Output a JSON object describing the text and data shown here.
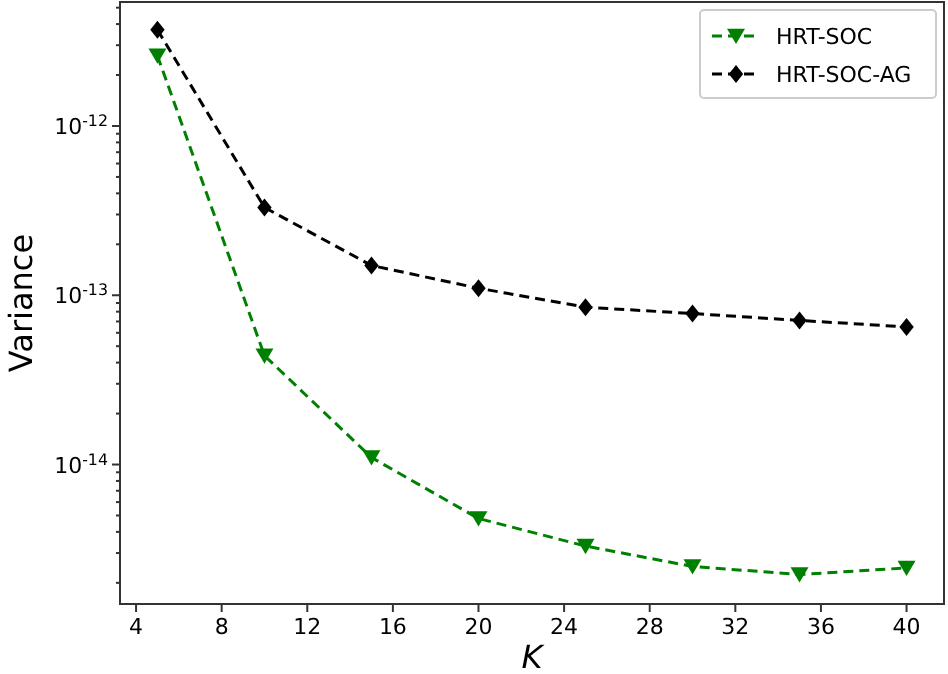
{
  "chart_data": {
    "type": "line",
    "xlabel": "K",
    "ylabel": "Variance",
    "x": [
      5,
      10,
      15,
      20,
      25,
      30,
      35,
      40
    ],
    "series": [
      {
        "name": "HRT-SOC",
        "color": "#008000",
        "marker": "triangle",
        "values": [
          2.6e-12,
          4.4e-14,
          1.1e-14,
          4.8e-15,
          3.3e-15,
          2.5e-15,
          2.24e-15,
          2.45e-15
        ]
      },
      {
        "name": "HRT-SOC-AG",
        "color": "#000000",
        "marker": "diamond",
        "values": [
          3.7e-12,
          3.3e-13,
          1.5e-13,
          1.1e-13,
          8.5e-14,
          7.8e-14,
          7.1e-14,
          6.5e-14
        ]
      }
    ],
    "xlim": [
      3.25,
      41.75
    ],
    "xticks": [
      4,
      8,
      12,
      16,
      20,
      24,
      28,
      32,
      36,
      40
    ],
    "ylim": [
      1.5e-15,
      5.4e-12
    ],
    "yticks": [
      {
        "value": 1e-12,
        "label": "10$^{-12}$"
      },
      {
        "value": 1e-13,
        "label": "10$^{-13}$"
      },
      {
        "value": 1e-14,
        "label": "10$^{-14}$"
      },
      {
        "value": 2e-15,
        "label": null
      },
      {
        "value": 3e-15,
        "label": null
      },
      {
        "value": 4e-15,
        "label": null
      },
      {
        "value": 5e-15,
        "label": null
      },
      {
        "value": 6e-15,
        "label": null
      },
      {
        "value": 7e-15,
        "label": null
      },
      {
        "value": 8e-15,
        "label": null
      },
      {
        "value": 9e-15,
        "label": null
      },
      {
        "value": 2e-14,
        "label": null
      },
      {
        "value": 3e-14,
        "label": null
      },
      {
        "value": 4e-14,
        "label": null
      },
      {
        "value": 5e-14,
        "label": null
      },
      {
        "value": 6e-14,
        "label": null
      },
      {
        "value": 7e-14,
        "label": null
      },
      {
        "value": 8e-14,
        "label": null
      },
      {
        "value": 9e-14,
        "label": null
      },
      {
        "value": 2e-13,
        "label": null
      },
      {
        "value": 3e-13,
        "label": null
      },
      {
        "value": 4e-13,
        "label": null
      },
      {
        "value": 5e-13,
        "label": null
      },
      {
        "value": 6e-13,
        "label": null
      },
      {
        "value": 7e-13,
        "label": null
      },
      {
        "value": 8e-13,
        "label": null
      },
      {
        "value": 9e-13,
        "label": null
      },
      {
        "value": 2e-12,
        "label": null
      },
      {
        "value": 3e-12,
        "label": null
      },
      {
        "value": 4e-12,
        "label": null
      },
      {
        "value": 5e-12,
        "label": null
      }
    ],
    "log": "y",
    "grid": false,
    "legend": "top right",
    "line_style": "dashed"
  }
}
